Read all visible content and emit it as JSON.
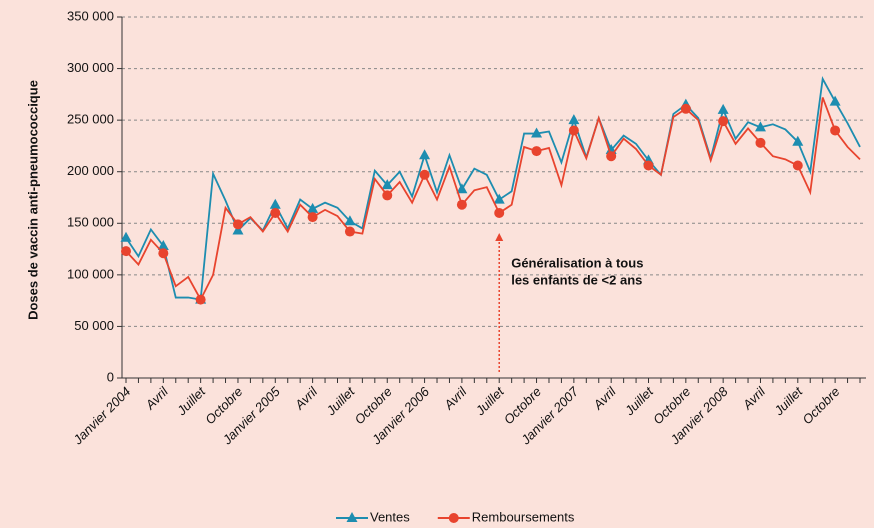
{
  "chart_data": {
    "type": "line",
    "ylabel": "Doses de vaccin anti-pneumococcique",
    "categories": [
      "Janvier 2004",
      null,
      null,
      "Avril",
      null,
      null,
      "Juillet",
      null,
      null,
      "Octobre",
      null,
      null,
      "Janvier 2005",
      null,
      null,
      "Avril",
      null,
      null,
      "Juillet",
      null,
      null,
      "Octobre",
      null,
      null,
      "Janvier 2006",
      null,
      null,
      "Avril",
      null,
      null,
      "Juillet",
      null,
      null,
      "Octobre",
      null,
      null,
      "Janvier 2007",
      null,
      null,
      "Avril",
      null,
      null,
      "Juillet",
      null,
      null,
      "Octobre",
      null,
      null,
      "Janvier 2008",
      null,
      null,
      "Avril",
      null,
      null,
      "Juillet",
      null,
      null,
      "Octobre",
      null,
      null
    ],
    "series": [
      {
        "name": "Ventes",
        "color": "#1d8db0",
        "marker": "triangle",
        "values": [
          136000,
          118000,
          144000,
          128000,
          78000,
          78000,
          76000,
          198000,
          172000,
          143000,
          155000,
          143000,
          168000,
          145000,
          173000,
          164000,
          170000,
          165000,
          152000,
          145000,
          201000,
          187000,
          200000,
          176000,
          216000,
          180000,
          216000,
          183000,
          203000,
          197000,
          173000,
          181000,
          237000,
          237000,
          239000,
          209000,
          250000,
          214000,
          252000,
          221000,
          235000,
          227000,
          211000,
          197000,
          256000,
          265000,
          252000,
          213000,
          260000,
          232000,
          248000,
          243000,
          246000,
          241000,
          229000,
          200000,
          290000,
          268000,
          247000,
          224000
        ]
      },
      {
        "name": "Remboursements",
        "color": "#e8442e",
        "marker": "circle",
        "values": [
          123000,
          110000,
          134000,
          121000,
          89000,
          98000,
          76000,
          100000,
          165000,
          149000,
          156000,
          142000,
          160000,
          142000,
          168000,
          156000,
          163000,
          157000,
          142000,
          140000,
          193000,
          177000,
          190000,
          170000,
          197000,
          173000,
          205000,
          168000,
          182000,
          185000,
          160000,
          168000,
          224000,
          220000,
          223000,
          187000,
          240000,
          213000,
          252000,
          215000,
          232000,
          222000,
          206000,
          197000,
          253000,
          261000,
          250000,
          211000,
          249000,
          227000,
          242000,
          228000,
          215000,
          212000,
          206000,
          180000,
          272000,
          240000,
          224000,
          212000
        ]
      }
    ],
    "ylim": [
      0,
      350000
    ],
    "yticks": [
      0,
      {
        "value": 50000,
        "label": "50 000"
      },
      {
        "value": 100000,
        "label": "100 000"
      },
      {
        "value": 150000,
        "label": "150 000"
      },
      {
        "value": 200000,
        "label": "200 000"
      },
      {
        "value": 250000,
        "label": "250 000"
      },
      {
        "value": 300000,
        "label": "300 000"
      },
      {
        "value": 350000,
        "label": "350 000"
      }
    ],
    "grid": true,
    "annotation": {
      "lines": [
        "Généralisation à tous",
        "les enfants de <2 ans"
      ],
      "at_index": 30,
      "color": "#e8442e"
    }
  }
}
